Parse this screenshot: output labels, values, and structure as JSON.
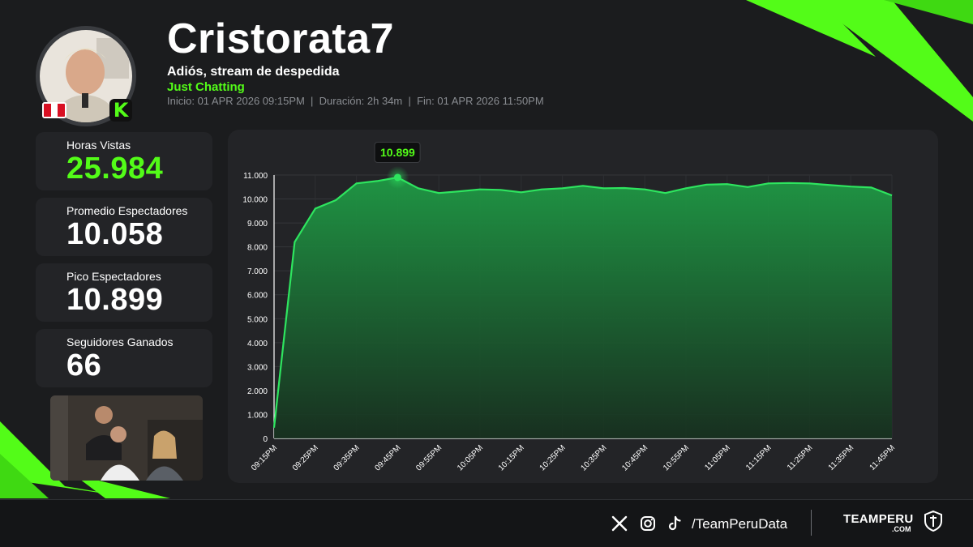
{
  "streamer": {
    "name": "Cristorata7",
    "stream_title": "Adiós, stream de despedida",
    "category": "Just Chatting",
    "meta_line": "Inicio: 01 APR 2026 09:15PM  |  Duración: 2h 34m  |  Fin: 01 APR 2026 11:50PM",
    "country_flag": "peru-flag",
    "platform_icon": "kick-icon"
  },
  "stats": [
    {
      "label": "Horas Vistas",
      "value": "25.984",
      "accent": true
    },
    {
      "label": "Promedio Espectadores",
      "value": "10.058",
      "accent": false
    },
    {
      "label": "Pico Espectadores",
      "value": "10.899",
      "accent": false
    },
    {
      "label": "Seguidores Ganados",
      "value": "66",
      "accent": false
    }
  ],
  "colors": {
    "accent": "#53fc18",
    "line": "#2ee55f",
    "panel": "#232427",
    "background": "#1b1c1e"
  },
  "chart_data": {
    "type": "area",
    "title": "",
    "xlabel": "",
    "ylabel": "",
    "ylim": [
      0,
      11000
    ],
    "yticks": [
      0,
      1000,
      2000,
      3000,
      4000,
      5000,
      6000,
      7000,
      8000,
      9000,
      10000,
      11000
    ],
    "ytick_labels": [
      "0",
      "1.000",
      "2.000",
      "3.000",
      "4.000",
      "5.000",
      "6.000",
      "7.000",
      "8.000",
      "9.000",
      "10.000",
      "11.000"
    ],
    "xtick_labels": [
      "09:15PM",
      "09:25PM",
      "09:35PM",
      "09:45PM",
      "09:55PM",
      "10:05PM",
      "10:15PM",
      "10:25PM",
      "10:35PM",
      "10:45PM",
      "10:55PM",
      "11:05PM",
      "11:15PM",
      "11:25PM",
      "11:35PM",
      "11:45PM"
    ],
    "x": [
      "09:15PM",
      "09:20PM",
      "09:25PM",
      "09:30PM",
      "09:35PM",
      "09:40PM",
      "09:45PM",
      "09:50PM",
      "09:55PM",
      "10:00PM",
      "10:05PM",
      "10:10PM",
      "10:15PM",
      "10:20PM",
      "10:25PM",
      "10:30PM",
      "10:35PM",
      "10:40PM",
      "10:45PM",
      "10:50PM",
      "10:55PM",
      "11:00PM",
      "11:05PM",
      "11:10PM",
      "11:15PM",
      "11:20PM",
      "11:25PM",
      "11:30PM",
      "11:35PM",
      "11:40PM",
      "11:45PM"
    ],
    "series": [
      {
        "values": [
          450,
          8200,
          9600,
          9950,
          10650,
          10750,
          10899,
          10450,
          10250,
          10320,
          10400,
          10380,
          10280,
          10400,
          10450,
          10550,
          10450,
          10460,
          10400,
          10250,
          10450,
          10600,
          10620,
          10500,
          10650,
          10670,
          10650,
          10580,
          10520,
          10480,
          10150
        ]
      }
    ],
    "peak": {
      "x": "09:45PM",
      "value": 10899,
      "label": "10.899"
    },
    "grid": true,
    "legend": "none"
  },
  "footer": {
    "social_icons": [
      "x-icon",
      "instagram-icon",
      "tiktok-icon"
    ],
    "handle": "/TeamPeruData",
    "brand": "TEAMPERU",
    "brand_sub": ".COM"
  }
}
